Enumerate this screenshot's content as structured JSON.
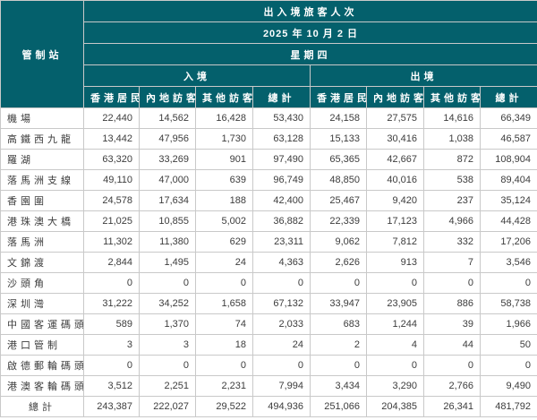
{
  "table": {
    "header": {
      "control_point": "管制站",
      "title": "出入境旅客人次",
      "date": "2025 年 10 月 2 日",
      "weekday": "星期四",
      "arrival": "入境",
      "departure": "出境",
      "sub_columns": [
        "香港居民",
        "內地訪客",
        "其他訪客",
        "總計"
      ]
    },
    "rows": [
      {
        "name": "機場",
        "arrival": [
          "22,440",
          "14,562",
          "16,428",
          "53,430"
        ],
        "departure": [
          "24,158",
          "27,575",
          "14,616",
          "66,349"
        ]
      },
      {
        "name": "高鐵西九龍",
        "arrival": [
          "13,442",
          "47,956",
          "1,730",
          "63,128"
        ],
        "departure": [
          "15,133",
          "30,416",
          "1,038",
          "46,587"
        ]
      },
      {
        "name": "羅湖",
        "arrival": [
          "63,320",
          "33,269",
          "901",
          "97,490"
        ],
        "departure": [
          "65,365",
          "42,667",
          "872",
          "108,904"
        ]
      },
      {
        "name": "落馬洲支線",
        "arrival": [
          "49,110",
          "47,000",
          "639",
          "96,749"
        ],
        "departure": [
          "48,850",
          "40,016",
          "538",
          "89,404"
        ]
      },
      {
        "name": "香園圍",
        "arrival": [
          "24,578",
          "17,634",
          "188",
          "42,400"
        ],
        "departure": [
          "25,467",
          "9,420",
          "237",
          "35,124"
        ]
      },
      {
        "name": "港珠澳大橋",
        "arrival": [
          "21,025",
          "10,855",
          "5,002",
          "36,882"
        ],
        "departure": [
          "22,339",
          "17,123",
          "4,966",
          "44,428"
        ]
      },
      {
        "name": "落馬洲",
        "arrival": [
          "11,302",
          "11,380",
          "629",
          "23,311"
        ],
        "departure": [
          "9,062",
          "7,812",
          "332",
          "17,206"
        ]
      },
      {
        "name": "文錦渡",
        "arrival": [
          "2,844",
          "1,495",
          "24",
          "4,363"
        ],
        "departure": [
          "2,626",
          "913",
          "7",
          "3,546"
        ]
      },
      {
        "name": "沙頭角",
        "arrival": [
          "0",
          "0",
          "0",
          "0"
        ],
        "departure": [
          "0",
          "0",
          "0",
          "0"
        ]
      },
      {
        "name": "深圳灣",
        "arrival": [
          "31,222",
          "34,252",
          "1,658",
          "67,132"
        ],
        "departure": [
          "33,947",
          "23,905",
          "886",
          "58,738"
        ]
      },
      {
        "name": "中國客運碼頭",
        "arrival": [
          "589",
          "1,370",
          "74",
          "2,033"
        ],
        "departure": [
          "683",
          "1,244",
          "39",
          "1,966"
        ]
      },
      {
        "name": "港口管制",
        "arrival": [
          "3",
          "3",
          "18",
          "24"
        ],
        "departure": [
          "2",
          "4",
          "44",
          "50"
        ]
      },
      {
        "name": "啟德郵輪碼頭",
        "arrival": [
          "0",
          "0",
          "0",
          "0"
        ],
        "departure": [
          "0",
          "0",
          "0",
          "0"
        ]
      },
      {
        "name": "港澳客輪碼頭",
        "arrival": [
          "3,512",
          "2,251",
          "2,231",
          "7,994"
        ],
        "departure": [
          "3,434",
          "3,290",
          "2,766",
          "9,490"
        ]
      }
    ],
    "total_row": {
      "name": "總計",
      "arrival": [
        "243,387",
        "222,027",
        "29,522",
        "494,936"
      ],
      "departure": [
        "251,066",
        "204,385",
        "26,341",
        "481,792"
      ]
    }
  },
  "colors": {
    "header_bg": "#04606c",
    "header_text": "#ffffff",
    "header_border": "#578f9a",
    "cell_border": "#c9c9c9",
    "cell_text": "#3c3c3c",
    "cell_bg": "#ffffff"
  }
}
